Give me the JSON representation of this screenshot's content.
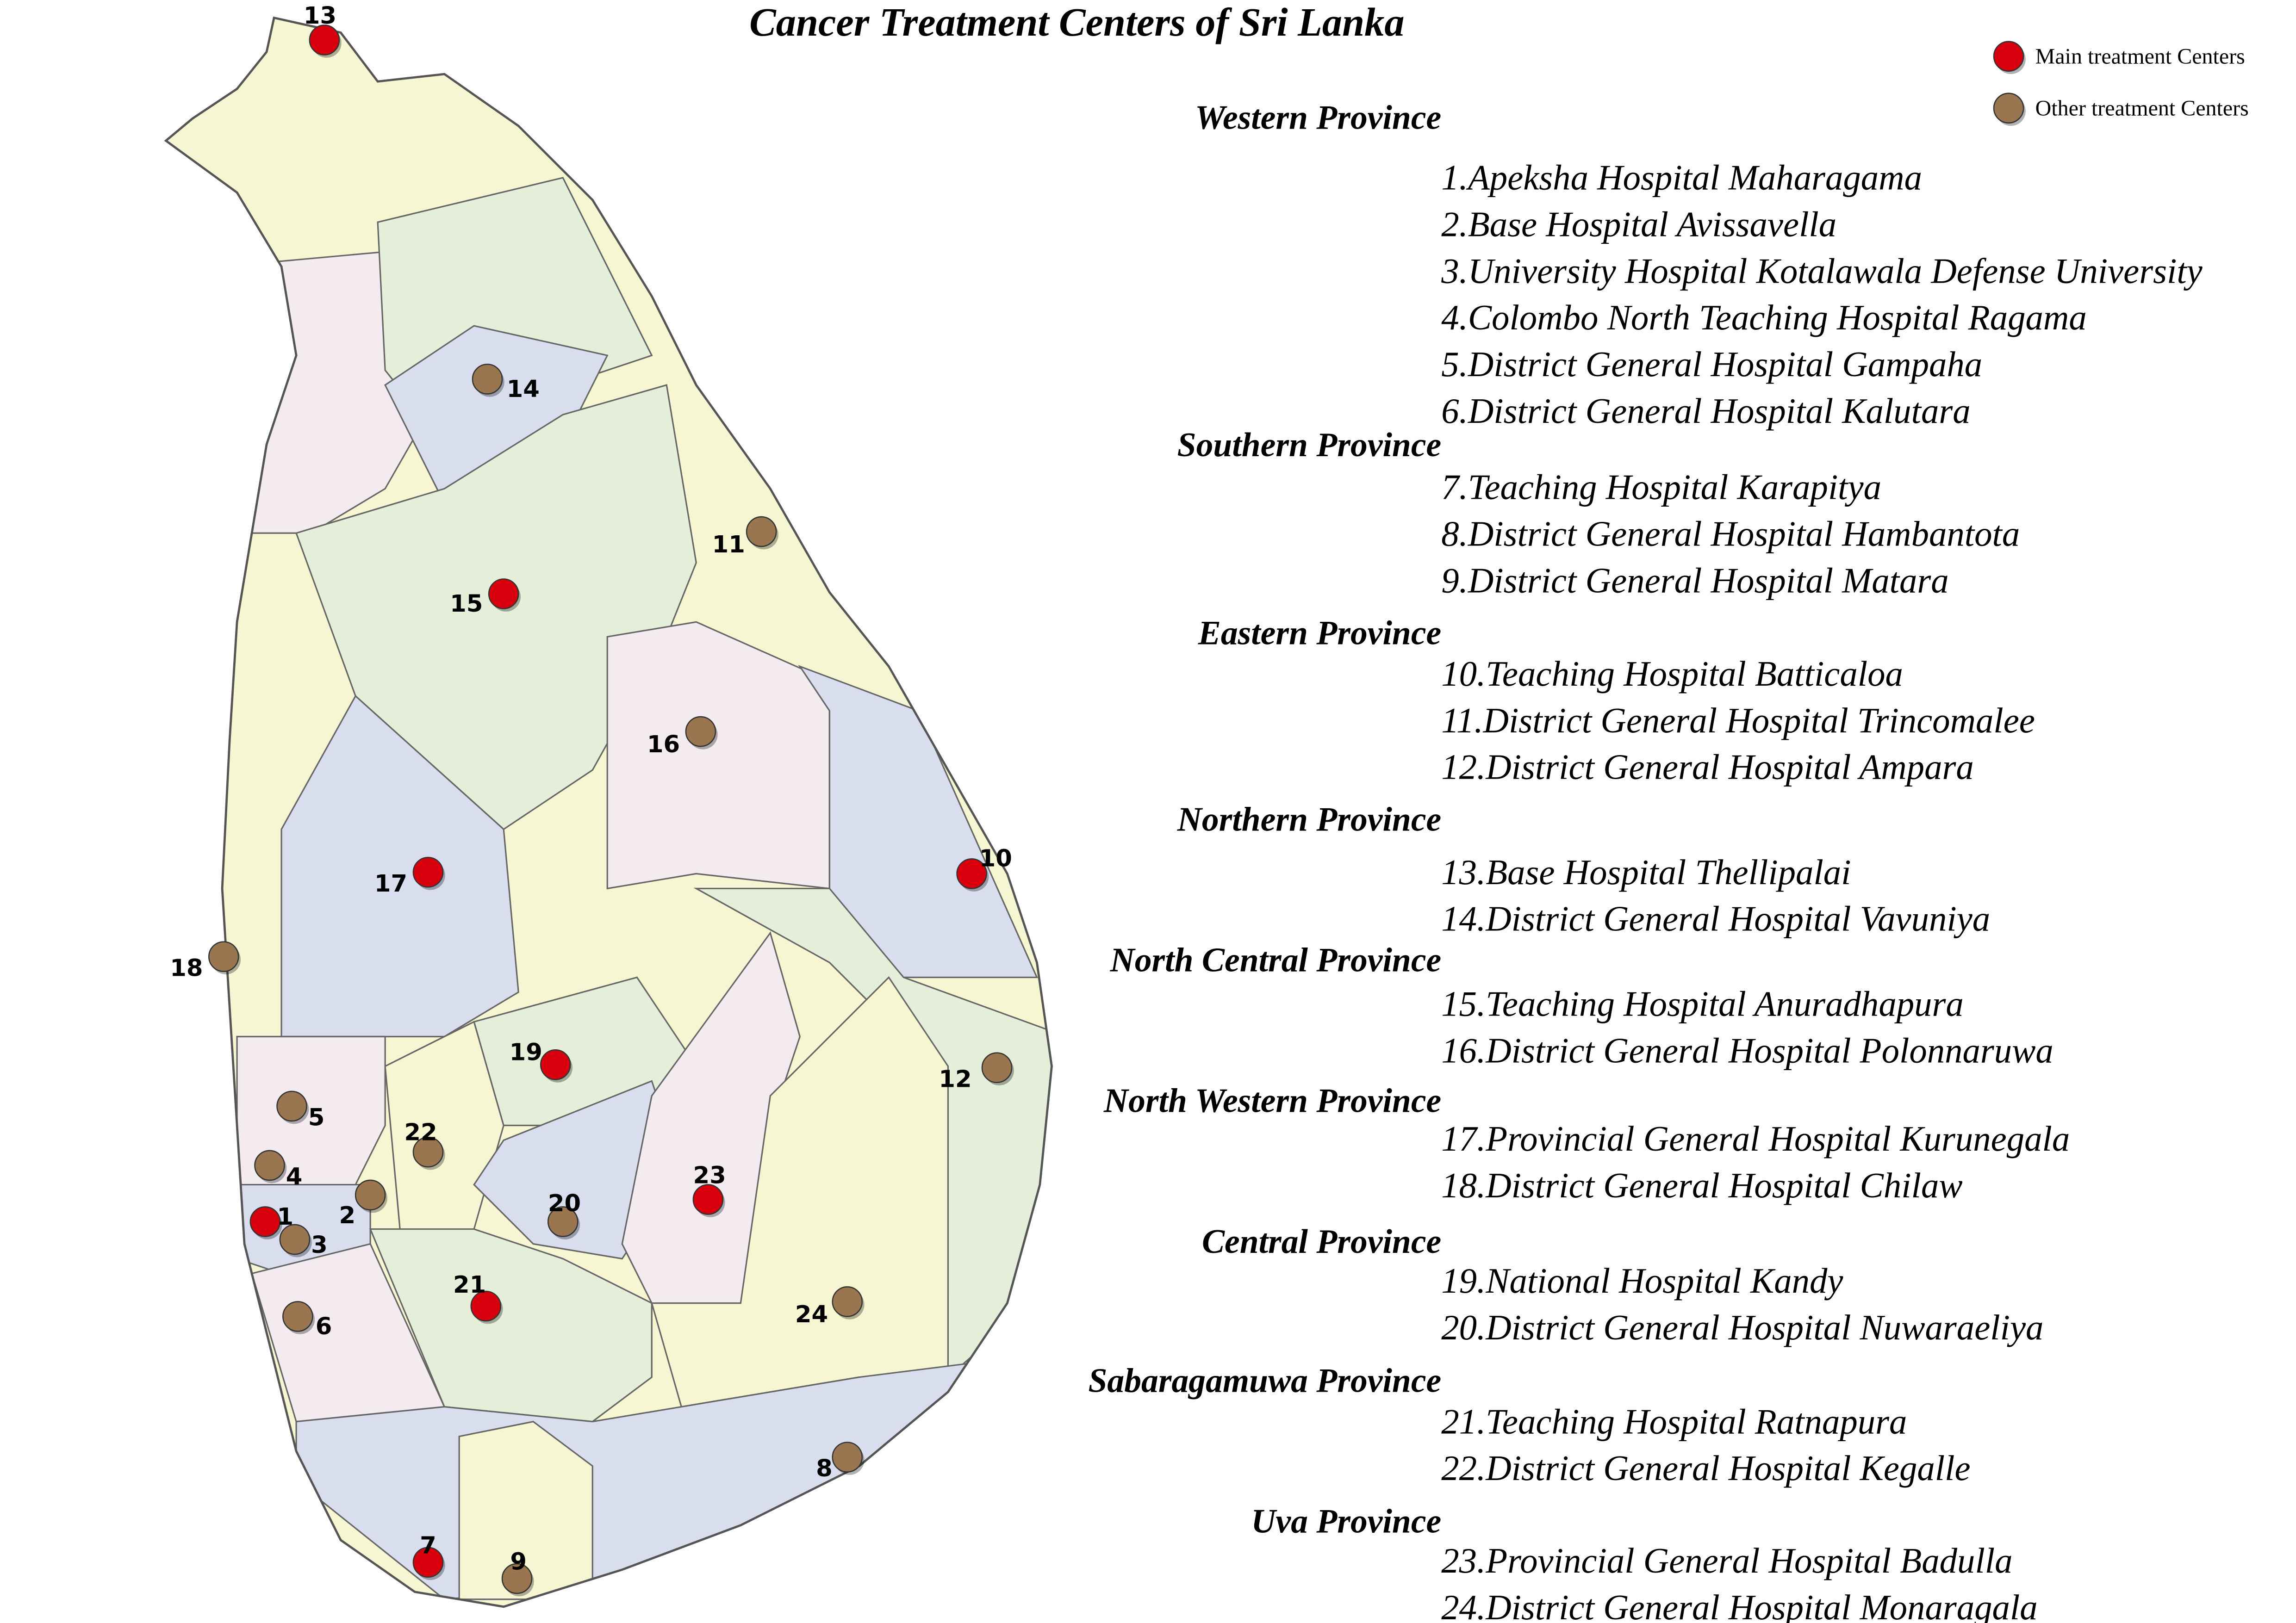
{
  "title": "Cancer Treatment Centers of Sri Lanka",
  "legend": [
    {
      "label": "Main treatment Centers",
      "color": "#d8000c"
    },
    {
      "label": "Other treatment Centers",
      "color": "#9a7650"
    }
  ],
  "provinces": [
    {
      "name": "Western Province",
      "hospitals": [
        "1.Apeksha Hospital Maharagama",
        "2.Base Hospital Avissavella",
        "3.University Hospital Kotalawala Defense University",
        "4.Colombo North Teaching Hospital Ragama",
        "5.District General Hospital Gampaha",
        "6.District General Hospital Kalutara"
      ]
    },
    {
      "name": "Southern Province",
      "hospitals": [
        "7.Teaching Hospital Karapitya",
        "8.District General Hospital Hambantota",
        "9.District General Hospital Matara"
      ]
    },
    {
      "name": "Eastern Province",
      "hospitals": [
        "10.Teaching Hospital Batticaloa",
        "11.District General Hospital Trincomalee",
        "12.District General Hospital Ampara"
      ]
    },
    {
      "name": "Northern Province",
      "hospitals": [
        "13.Base Hospital Thellipalai",
        "14.District General Hospital Vavuniya"
      ]
    },
    {
      "name": "North Central Province",
      "hospitals": [
        "15.Teaching Hospital Anuradhapura",
        "16.District General Hospital Polonnaruwa"
      ]
    },
    {
      "name": "North Western Province",
      "hospitals": [
        "17.Provincial General Hospital Kurunegala",
        "18.District General Hospital Chilaw"
      ]
    },
    {
      "name": "Central Province",
      "hospitals": [
        "19.National Hospital Kandy",
        "20.District General Hospital Nuwaraeliya"
      ]
    },
    {
      "name": "Sabaragamuwa Province",
      "hospitals": [
        "21.Teaching Hospital Ratnapura",
        "22.District General Hospital Kegalle"
      ]
    },
    {
      "name": "Uva Province",
      "hospitals": [
        "23.Provincial General Hospital Badulla",
        "24.District General Hospital Monaragala"
      ]
    }
  ],
  "markers": [
    {
      "label": "13",
      "color": "#d8000c"
    },
    {
      "label": "14",
      "color": "#9a7650"
    },
    {
      "label": "15",
      "color": "#d8000c"
    },
    {
      "label": "11",
      "color": "#9a7650"
    },
    {
      "label": "16",
      "color": "#9a7650"
    },
    {
      "label": "17",
      "color": "#d8000c"
    },
    {
      "label": "10",
      "color": "#d8000c"
    },
    {
      "label": "18",
      "color": "#9a7650"
    },
    {
      "label": "19",
      "color": "#d8000c"
    },
    {
      "label": "12",
      "color": "#9a7650"
    },
    {
      "label": "5",
      "color": "#9a7650"
    },
    {
      "label": "22",
      "color": "#9a7650"
    },
    {
      "label": "4",
      "color": "#9a7650"
    },
    {
      "label": "23",
      "color": "#d8000c"
    },
    {
      "label": "2",
      "color": "#9a7650"
    },
    {
      "label": "20",
      "color": "#9a7650"
    },
    {
      "label": "1",
      "color": "#d8000c"
    },
    {
      "label": "3",
      "color": "#9a7650"
    },
    {
      "label": "21",
      "color": "#d8000c"
    },
    {
      "label": "24",
      "color": "#9a7650"
    },
    {
      "label": "6",
      "color": "#9a7650"
    },
    {
      "label": "8",
      "color": "#9a7650"
    },
    {
      "label": "7",
      "color": "#d8000c"
    },
    {
      "label": "9",
      "color": "#9a7650"
    }
  ]
}
